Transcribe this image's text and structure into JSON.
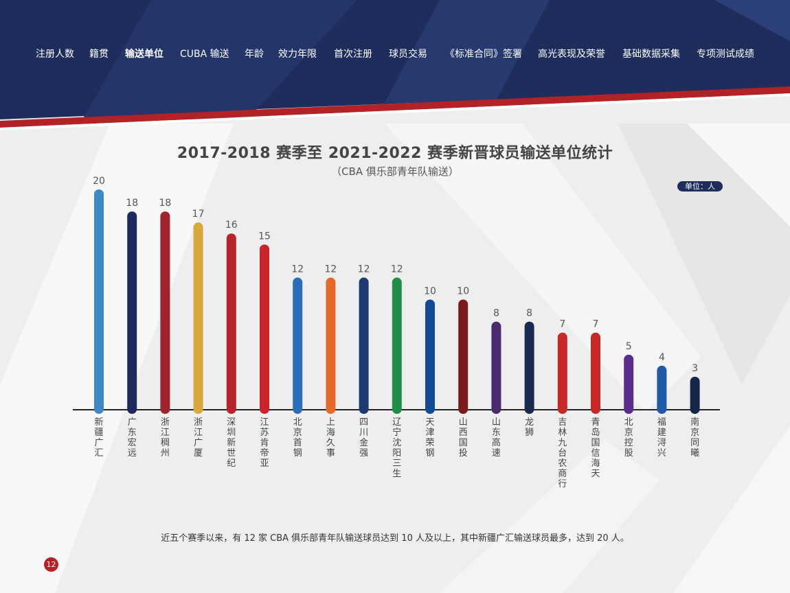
{
  "nav": {
    "items": [
      {
        "label": "注册人数",
        "active": false
      },
      {
        "label": "籍贯",
        "active": false
      },
      {
        "label": "输送单位",
        "active": true
      },
      {
        "label": "CUBA 输送",
        "active": false
      },
      {
        "label": "年龄",
        "active": false
      },
      {
        "label": "效力年限",
        "active": false
      },
      {
        "label": "首次注册",
        "active": false
      },
      {
        "label": "球员交易",
        "active": false
      },
      {
        "label": "《标准合同》签署",
        "active": false
      },
      {
        "label": "高光表现及荣誉",
        "active": false
      },
      {
        "label": "基础数据采集",
        "active": false
      },
      {
        "label": "专项测试成绩",
        "active": false
      }
    ]
  },
  "unit_label": "单位：人",
  "footnote": "近五个赛季以来，有 12 家 CBA 俱乐部青年队输送球员达到 10 人及以上，其中新疆广汇输送球员最多，达到 20 人。",
  "page_number": "12",
  "colors": {
    "header_navy": "#1f2d5c",
    "accent_red": "#b32227",
    "background": "#eeeeee"
  },
  "chart_data": {
    "type": "bar",
    "title": "2017-2018 赛季至 2021-2022 赛季新晋球员输送单位统计",
    "subtitle": "（CBA 俱乐部青年队输送）",
    "xlabel": "",
    "ylabel": "",
    "ylim": [
      0,
      20
    ],
    "grid": false,
    "legend": "none",
    "categories": [
      "新疆广汇",
      "广东宏远",
      "浙江稠州",
      "浙江广厦",
      "深圳新世纪",
      "江苏肯帝亚",
      "北京首钢",
      "上海久事",
      "四川金强",
      "辽宁沈阳三生",
      "天津荣钢",
      "山西国投",
      "山东高速",
      "龙狮",
      "吉林九台农商行",
      "青岛国信海天",
      "北京控股",
      "福建浔兴",
      "南京同曦"
    ],
    "values": [
      20,
      18,
      18,
      17,
      16,
      15,
      12,
      12,
      12,
      12,
      10,
      10,
      8,
      8,
      7,
      7,
      5,
      4,
      3
    ],
    "bar_colors": [
      "#3f88c5",
      "#1f2a5a",
      "#a0232f",
      "#d8a83a",
      "#b5252b",
      "#c8242a",
      "#2a6fb5",
      "#e5692a",
      "#1d3a70",
      "#1e8f46",
      "#114a96",
      "#7a1a1f",
      "#4a2a6e",
      "#1a2a4e",
      "#c62828",
      "#c62828",
      "#5b2d8a",
      "#1f5aa8",
      "#15254a"
    ]
  }
}
